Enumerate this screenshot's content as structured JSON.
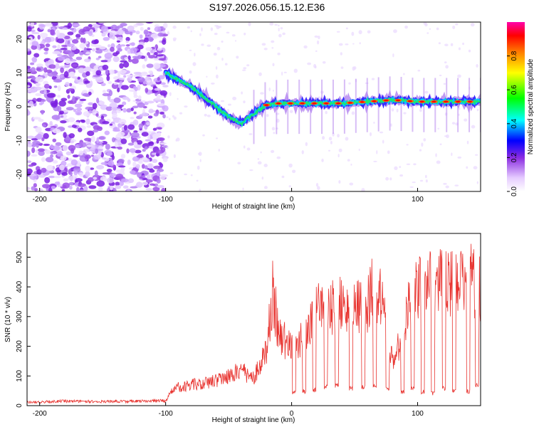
{
  "title": "S197.2026.056.15.12.E36",
  "colors": {
    "snr_line": "#e8332f",
    "axis": "#000000",
    "background": "#ffffff"
  },
  "chart_data": [
    {
      "type": "heatmap",
      "name": "spectrogram",
      "xlabel": "Height of straight line (km)",
      "ylabel": "Frequency (Hz)",
      "xlim": [
        -210,
        150
      ],
      "ylim": [
        -25,
        25
      ],
      "x_ticks": [
        -200,
        -100,
        0,
        100
      ],
      "y_ticks": [
        -20,
        -10,
        0,
        10,
        20
      ],
      "colorbar": {
        "label": "Normalized spectral amplitude",
        "range": [
          0,
          1
        ],
        "ticks": [
          "0.0",
          "0.2",
          "0.4",
          "0.6",
          "0.8"
        ],
        "colormap": [
          "#ffffff",
          "#d9b3ff",
          "#8a2be2",
          "#0000ff",
          "#00ffff",
          "#00ff00",
          "#ffff00",
          "#ff8000",
          "#ff0000",
          "#ff00aa"
        ]
      },
      "ridge": {
        "description": "frequency track vs height",
        "x": [
          -100,
          -90,
          -80,
          -70,
          -60,
          -50,
          -40,
          -30,
          -20,
          -10,
          0,
          20,
          40,
          60,
          80,
          100,
          120,
          150
        ],
        "y": [
          10,
          8,
          6,
          3,
          0,
          -3,
          -5,
          -2,
          0.5,
          1,
          1,
          1,
          1,
          1.5,
          2,
          1.5,
          1.5,
          1.5
        ]
      }
    },
    {
      "type": "line",
      "name": "snr",
      "xlabel": "Height of straight line (km)",
      "ylabel": "SNR (10 * v/v)",
      "xlim": [
        -210,
        150
      ],
      "ylim": [
        0,
        580
      ],
      "x_ticks": [
        -200,
        -100,
        0,
        100
      ],
      "y_ticks": [
        0,
        100,
        200,
        300,
        400,
        500
      ],
      "series": [
        {
          "name": "SNR",
          "x": [
            -210,
            -180,
            -150,
            -120,
            -100,
            -95,
            -90,
            -80,
            -70,
            -60,
            -50,
            -40,
            -30,
            -20,
            -15,
            -10,
            -5,
            0,
            5,
            10,
            20,
            30,
            40,
            50,
            60,
            65,
            70,
            80,
            90,
            95,
            100,
            110,
            120,
            130,
            140,
            150
          ],
          "y": [
            15,
            20,
            18,
            20,
            22,
            60,
            80,
            90,
            100,
            110,
            130,
            150,
            120,
            230,
            500,
            300,
            280,
            240,
            260,
            320,
            420,
            420,
            440,
            420,
            440,
            520,
            480,
            200,
            340,
            500,
            520,
            520,
            530,
            520,
            560,
            500
          ]
        }
      ],
      "dips": {
        "x": [
          2,
          10,
          18,
          27,
          36,
          47,
          57,
          66,
          76,
          88,
          96,
          104,
          112,
          121,
          129,
          140,
          147
        ],
        "y": [
          35,
          40,
          45,
          55,
          60,
          50,
          55,
          60,
          50,
          40,
          50,
          40,
          35,
          50,
          45,
          40,
          60
        ]
      }
    }
  ]
}
